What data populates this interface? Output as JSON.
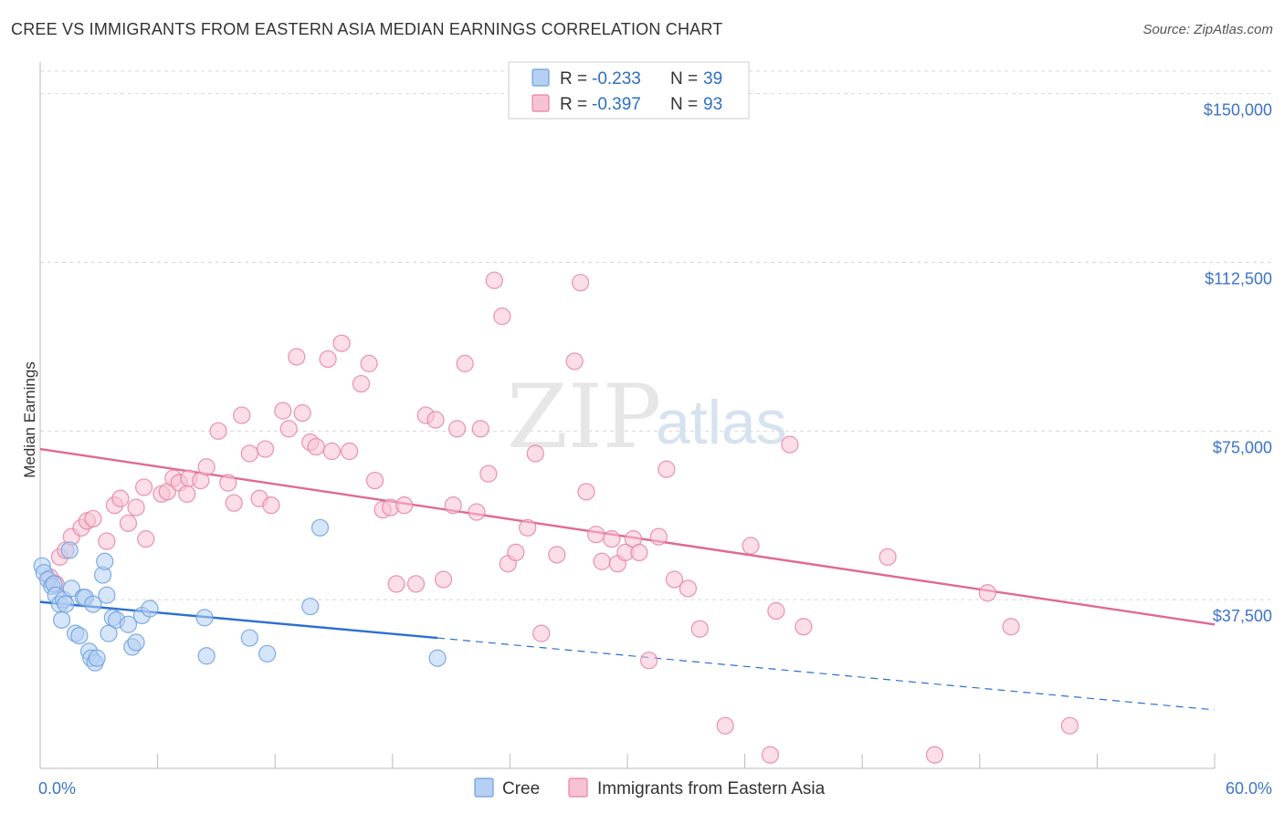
{
  "title": "CREE VS IMMIGRANTS FROM EASTERN ASIA MEDIAN EARNINGS CORRELATION CHART",
  "source": "Source: ZipAtlas.com",
  "watermark": {
    "zip": "ZIP",
    "atlas": "atlas"
  },
  "colors": {
    "cree": "#6a9fe0",
    "cree_fill": "#b5d0f3",
    "cree_line": "#2c6fd1",
    "asia": "#e87fa3",
    "asia_fill": "#f7c3d4",
    "asia_line": "#e06892",
    "grid": "#d8d8d8",
    "axis_text": "#3b74c9"
  },
  "legend": {
    "r_label": "R =",
    "n_label": "N =",
    "rows": [
      {
        "series": "cree",
        "r": "-0.233",
        "n": "39"
      },
      {
        "series": "asia",
        "r": "-0.397",
        "n": "93"
      }
    ]
  },
  "bottom_legend": [
    "Cree",
    "Immigrants from Eastern Asia"
  ],
  "chart_data": {
    "type": "scatter",
    "ylabel": "Median Earnings",
    "xlim": [
      0,
      60
    ],
    "ylim": [
      0,
      155000
    ],
    "x_tick_labels": [
      "0.0%",
      "60.0%"
    ],
    "y_ticks": [
      {
        "value": 150000,
        "label": "$150,000"
      },
      {
        "value": 112500,
        "label": "$112,500"
      },
      {
        "value": 75000,
        "label": "$75,000"
      },
      {
        "value": 37500,
        "label": "$37,500"
      }
    ],
    "series": [
      {
        "name": "Cree",
        "key": "cree",
        "trend": {
          "x0": 0,
          "y0": 37000,
          "x1": 20.3,
          "y1": 29000,
          "dash_x1": 60,
          "dash_y1": 13000
        },
        "points": [
          [
            0.1,
            45000
          ],
          [
            0.2,
            43500
          ],
          [
            0.4,
            42000
          ],
          [
            0.6,
            40500
          ],
          [
            0.7,
            41000
          ],
          [
            0.8,
            38500
          ],
          [
            1.0,
            36500
          ],
          [
            1.1,
            33000
          ],
          [
            1.2,
            37500
          ],
          [
            1.3,
            36500
          ],
          [
            1.5,
            48500
          ],
          [
            1.6,
            40000
          ],
          [
            1.8,
            30000
          ],
          [
            2.0,
            29500
          ],
          [
            2.2,
            38000
          ],
          [
            2.3,
            38000
          ],
          [
            2.5,
            26000
          ],
          [
            2.6,
            24500
          ],
          [
            2.7,
            36500
          ],
          [
            2.8,
            23500
          ],
          [
            2.9,
            24500
          ],
          [
            3.2,
            43000
          ],
          [
            3.3,
            46000
          ],
          [
            3.4,
            38500
          ],
          [
            3.5,
            30000
          ],
          [
            3.7,
            33500
          ],
          [
            3.9,
            33000
          ],
          [
            4.5,
            32000
          ],
          [
            4.7,
            27000
          ],
          [
            4.9,
            28000
          ],
          [
            5.2,
            34000
          ],
          [
            5.6,
            35500
          ],
          [
            8.4,
            33500
          ],
          [
            8.5,
            25000
          ],
          [
            10.7,
            29000
          ],
          [
            11.6,
            25500
          ],
          [
            13.8,
            36000
          ],
          [
            14.3,
            53500
          ],
          [
            20.3,
            24500
          ]
        ]
      },
      {
        "name": "Immigrants from Eastern Asia",
        "key": "asia",
        "trend": {
          "x0": 0,
          "y0": 71000,
          "x1": 60,
          "y1": 32000
        },
        "points": [
          [
            0.5,
            42500
          ],
          [
            0.8,
            41000
          ],
          [
            1.0,
            47000
          ],
          [
            1.3,
            48500
          ],
          [
            1.6,
            51500
          ],
          [
            2.1,
            53500
          ],
          [
            2.4,
            55000
          ],
          [
            2.7,
            55500
          ],
          [
            3.4,
            50500
          ],
          [
            3.8,
            58500
          ],
          [
            4.1,
            60000
          ],
          [
            4.5,
            54500
          ],
          [
            4.9,
            58000
          ],
          [
            5.4,
            51000
          ],
          [
            5.3,
            62500
          ],
          [
            6.2,
            61000
          ],
          [
            6.5,
            61500
          ],
          [
            6.8,
            64500
          ],
          [
            7.1,
            63500
          ],
          [
            7.5,
            61000
          ],
          [
            7.6,
            64500
          ],
          [
            8.2,
            64000
          ],
          [
            8.5,
            67000
          ],
          [
            9.1,
            75000
          ],
          [
            9.6,
            63500
          ],
          [
            9.9,
            59000
          ],
          [
            10.3,
            78500
          ],
          [
            10.7,
            70000
          ],
          [
            11.2,
            60000
          ],
          [
            11.5,
            71000
          ],
          [
            11.8,
            58500
          ],
          [
            12.4,
            79500
          ],
          [
            12.7,
            75500
          ],
          [
            13.1,
            91500
          ],
          [
            13.4,
            79000
          ],
          [
            13.8,
            72500
          ],
          [
            14.1,
            71500
          ],
          [
            14.7,
            91000
          ],
          [
            14.9,
            70500
          ],
          [
            15.4,
            94500
          ],
          [
            15.8,
            70500
          ],
          [
            16.4,
            85500
          ],
          [
            16.8,
            90000
          ],
          [
            17.1,
            64000
          ],
          [
            17.5,
            57500
          ],
          [
            17.9,
            58000
          ],
          [
            18.2,
            41000
          ],
          [
            18.6,
            58500
          ],
          [
            19.2,
            41000
          ],
          [
            19.7,
            78500
          ],
          [
            20.2,
            77500
          ],
          [
            20.6,
            42000
          ],
          [
            21.1,
            58500
          ],
          [
            21.3,
            75500
          ],
          [
            21.7,
            90000
          ],
          [
            22.3,
            57000
          ],
          [
            22.5,
            75500
          ],
          [
            22.9,
            65500
          ],
          [
            23.2,
            108500
          ],
          [
            23.6,
            100500
          ],
          [
            23.9,
            45500
          ],
          [
            24.3,
            48000
          ],
          [
            24.9,
            53500
          ],
          [
            25.3,
            70000
          ],
          [
            25.6,
            30000
          ],
          [
            26.4,
            47500
          ],
          [
            27.3,
            90500
          ],
          [
            27.6,
            108000
          ],
          [
            27.9,
            61500
          ],
          [
            28.4,
            52000
          ],
          [
            28.7,
            46000
          ],
          [
            29.2,
            51000
          ],
          [
            29.5,
            45500
          ],
          [
            29.9,
            48000
          ],
          [
            30.3,
            51000
          ],
          [
            30.6,
            48000
          ],
          [
            31.1,
            24000
          ],
          [
            31.6,
            51500
          ],
          [
            32.0,
            66500
          ],
          [
            32.4,
            42000
          ],
          [
            33.1,
            40000
          ],
          [
            33.7,
            31000
          ],
          [
            35.0,
            9500
          ],
          [
            36.3,
            49500
          ],
          [
            37.3,
            3000
          ],
          [
            37.6,
            35000
          ],
          [
            38.3,
            72000
          ],
          [
            39.0,
            31500
          ],
          [
            43.3,
            47000
          ],
          [
            45.7,
            3000
          ],
          [
            48.4,
            39000
          ],
          [
            49.6,
            31500
          ],
          [
            52.6,
            9500
          ]
        ]
      }
    ]
  }
}
